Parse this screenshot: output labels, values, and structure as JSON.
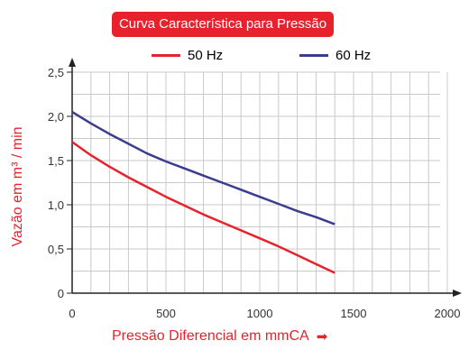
{
  "title": "Curva Característica para Pressão",
  "chart_data": {
    "type": "line",
    "title": "Curva Característica para Pressão",
    "xlabel": "Pressão Diferencial em mmCA",
    "ylabel": "Vazão em m³ / min",
    "xlim": [
      0,
      2000
    ],
    "ylim": [
      0,
      2.5
    ],
    "xticks": [
      "0",
      "500",
      "1000",
      "1500",
      "2000"
    ],
    "yticks": [
      "0",
      "0,5",
      "1,0",
      "1,5",
      "2,0",
      "2,5"
    ],
    "grid": true,
    "legend_position": "top",
    "series": [
      {
        "name": "50 Hz",
        "color": "#e8222c",
        "x": [
          0,
          100,
          200,
          300,
          400,
          500,
          600,
          700,
          800,
          900,
          1000,
          1100,
          1200,
          1300,
          1400
        ],
        "y": [
          1.71,
          1.56,
          1.43,
          1.31,
          1.2,
          1.09,
          0.99,
          0.89,
          0.8,
          0.71,
          0.62,
          0.53,
          0.43,
          0.33,
          0.23
        ]
      },
      {
        "name": "60 Hz",
        "color": "#3a3d8f",
        "x": [
          0,
          100,
          200,
          300,
          400,
          500,
          600,
          700,
          800,
          900,
          1000,
          1100,
          1200,
          1300,
          1400
        ],
        "y": [
          2.05,
          1.92,
          1.8,
          1.69,
          1.58,
          1.49,
          1.41,
          1.33,
          1.25,
          1.17,
          1.09,
          1.01,
          0.93,
          0.86,
          0.78
        ]
      }
    ]
  },
  "legend": [
    {
      "label": "50 Hz",
      "color": "#e8222c"
    },
    {
      "label": "60 Hz",
      "color": "#3a3d8f"
    }
  ],
  "ylabel": "Vazão em m³ / min",
  "xlabel": "Pressão Diferencial em mmCA",
  "xlabel_arrow": "➡",
  "accent_color": "#e8222c"
}
